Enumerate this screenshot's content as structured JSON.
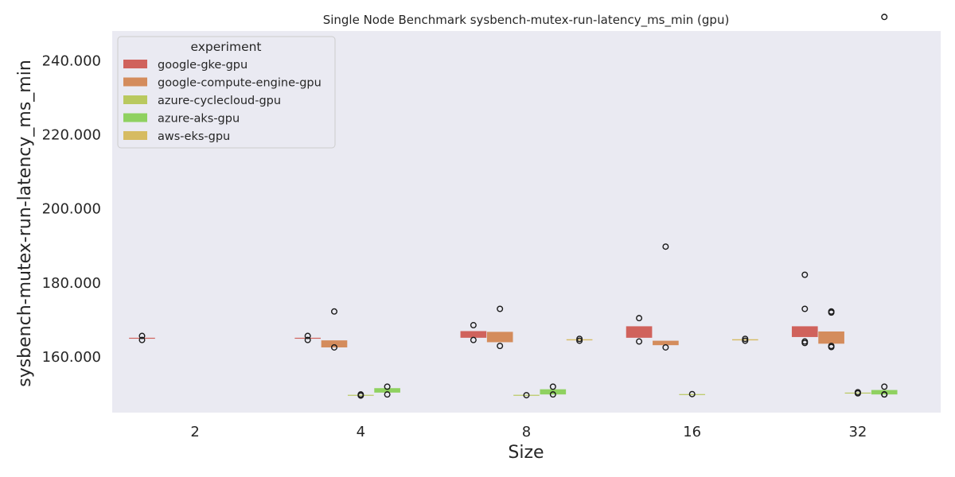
{
  "chart_data": {
    "type": "box",
    "title": "Single Node Benchmark sysbench-mutex-run-latency_ms_min (gpu)",
    "xlabel": "Size",
    "ylabel": "sysbench-mutex-run-latency_ms_min",
    "categories": [
      "2",
      "4",
      "8",
      "16",
      "32"
    ],
    "ylim": [
      145,
      248
    ],
    "yticks": [
      160,
      180,
      200,
      220,
      240
    ],
    "ytick_labels": [
      "160.000",
      "180.000",
      "200.000",
      "220.000",
      "240.000"
    ],
    "grid": false,
    "legend": {
      "title": "experiment",
      "placement": "top-left"
    },
    "series": [
      {
        "name": "google-gke-gpu",
        "color": "#d0625c",
        "boxes": [
          {
            "category": "2",
            "q1": 165.0,
            "q3": 165.2,
            "outliers": [
              165.7,
              164.6
            ]
          },
          {
            "category": "4",
            "q1": 165.0,
            "q3": 165.2,
            "outliers": [
              165.7,
              164.6
            ]
          },
          {
            "category": "8",
            "q1": 165.2,
            "q3": 167.0,
            "outliers": [
              168.6,
              164.6
            ]
          },
          {
            "category": "16",
            "q1": 165.2,
            "q3": 168.3,
            "outliers": [
              170.5,
              164.2
            ]
          },
          {
            "category": "32",
            "q1": 165.4,
            "q3": 168.3,
            "outliers": [
              182.2,
              173.0,
              164.2,
              163.8
            ]
          }
        ]
      },
      {
        "name": "google-compute-engine-gpu",
        "color": "#d48c5c",
        "boxes": [
          {
            "category": "4",
            "q1": 162.6,
            "q3": 164.5,
            "outliers": [
              172.3,
              162.6
            ]
          },
          {
            "category": "8",
            "q1": 164.0,
            "q3": 166.8,
            "outliers": [
              173.0,
              163.0
            ]
          },
          {
            "category": "16",
            "q1": 163.2,
            "q3": 164.4,
            "outliers": [
              189.8,
              162.6
            ]
          },
          {
            "category": "32",
            "q1": 163.6,
            "q3": 166.9,
            "outliers": [
              172.3,
              172.0,
              163.0,
              162.7
            ]
          }
        ]
      },
      {
        "name": "azure-cyclecloud-gpu",
        "color": "#b9c95f",
        "boxes": [
          {
            "category": "4",
            "q1": 149.7,
            "q3": 149.8,
            "outliers": [
              149.9,
              149.6
            ]
          },
          {
            "category": "8",
            "q1": 149.7,
            "q3": 149.8,
            "outliers": [
              149.7
            ]
          },
          {
            "category": "16",
            "q1": 149.9,
            "q3": 150.0,
            "outliers": [
              150.0
            ]
          },
          {
            "category": "32",
            "q1": 150.3,
            "q3": 150.4,
            "outliers": [
              150.5,
              150.2
            ]
          }
        ]
      },
      {
        "name": "azure-aks-gpu",
        "color": "#8fd160",
        "boxes": [
          {
            "category": "4",
            "q1": 150.4,
            "q3": 151.6,
            "outliers": [
              152.0,
              149.9
            ]
          },
          {
            "category": "8",
            "q1": 149.9,
            "q3": 151.3,
            "outliers": [
              152.0,
              149.9
            ]
          },
          {
            "category": "32",
            "q1": 149.9,
            "q3": 151.1,
            "outliers": [
              251.8,
              152.0,
              149.9,
              149.9
            ]
          }
        ]
      },
      {
        "name": "aws-eks-gpu",
        "color": "#d6bb62",
        "boxes": [
          {
            "category": "8",
            "q1": 164.5,
            "q3": 164.8,
            "outliers": [
              164.9,
              164.4
            ]
          },
          {
            "category": "16",
            "q1": 164.5,
            "q3": 164.8,
            "outliers": [
              164.9,
              164.4
            ]
          }
        ]
      }
    ]
  }
}
